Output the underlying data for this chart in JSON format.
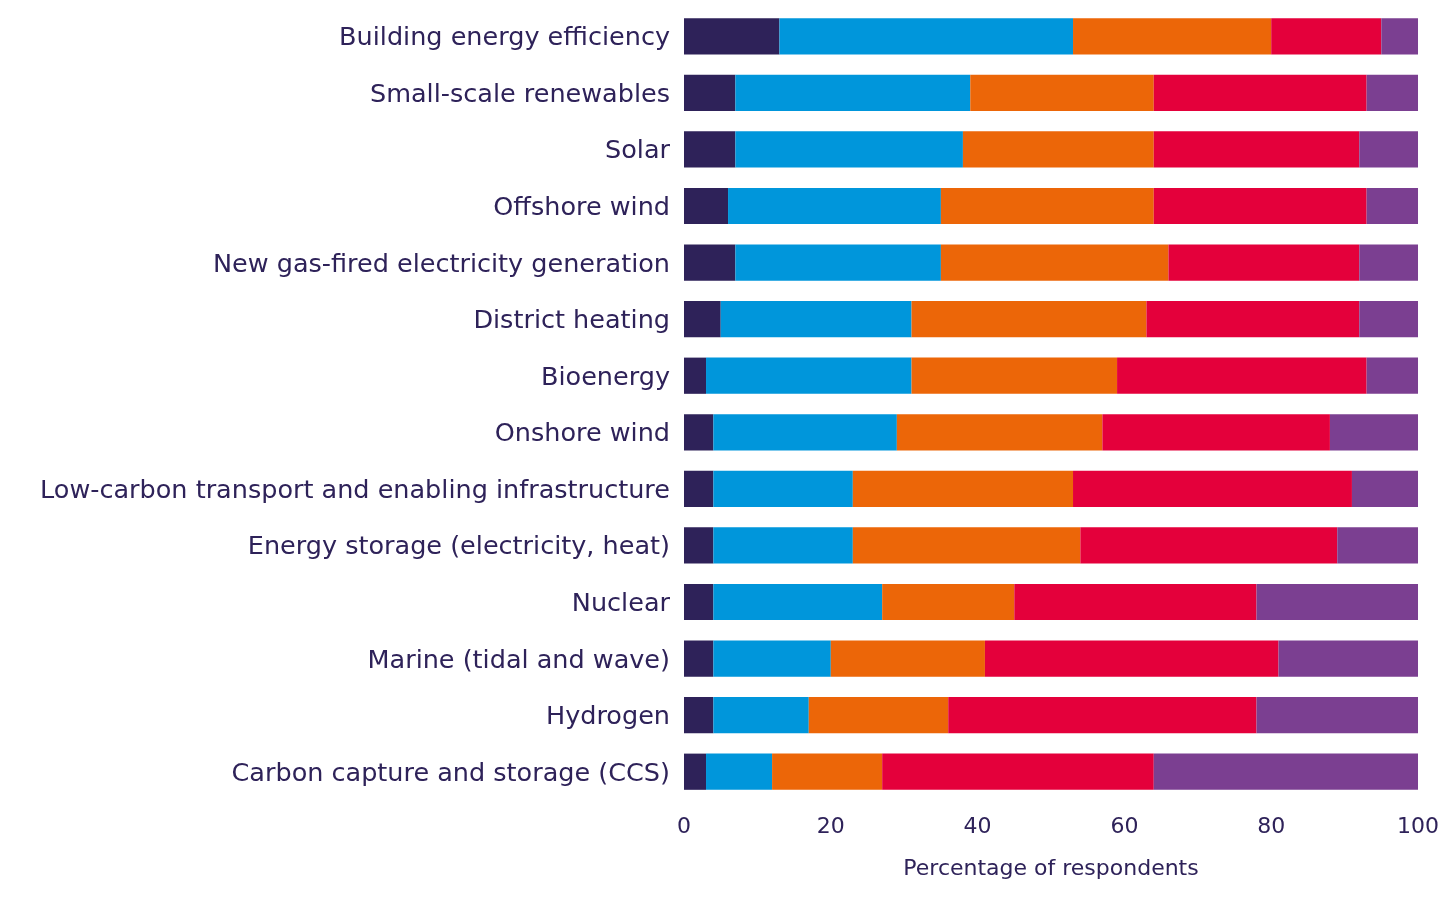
{
  "chart_data": {
    "type": "bar",
    "orientation": "horizontal",
    "stacked": true,
    "xlabel": "Percentage of respondents",
    "categories": [
      "Building energy efficiency",
      "Small-scale renewables",
      "Solar",
      "Offshore wind",
      "New gas-fired electricity generation",
      "District heating",
      "Bioenergy",
      "Onshore wind",
      "Low-carbon transport and enabling infrastructure",
      "Energy storage (electricity, heat)",
      "Nuclear",
      "Marine (tidal and wave)",
      "Hydrogen",
      "Carbon capture and storage (CCS)"
    ],
    "series": [
      {
        "color": "#2e2259",
        "values": [
          13,
          7,
          7,
          6,
          7,
          5,
          3,
          4,
          4,
          4,
          4,
          4,
          4,
          3
        ]
      },
      {
        "color": "#0096db",
        "values": [
          40,
          32,
          31,
          29,
          28,
          26,
          28,
          25,
          19,
          19,
          23,
          16,
          13,
          9
        ]
      },
      {
        "color": "#ec6608",
        "values": [
          27,
          25,
          26,
          29,
          31,
          32,
          28,
          28,
          30,
          31,
          18,
          21,
          19,
          15
        ]
      },
      {
        "color": "#e4003b",
        "values": [
          15,
          29,
          28,
          29,
          26,
          29,
          34,
          31,
          38,
          35,
          33,
          40,
          42,
          37
        ]
      },
      {
        "color": "#7b3f91",
        "values": [
          5,
          7,
          8,
          7,
          8,
          8,
          7,
          12,
          9,
          11,
          22,
          19,
          22,
          36
        ]
      }
    ],
    "xlim": [
      0,
      100
    ],
    "xticks": [
      0,
      20,
      40,
      60,
      80,
      100
    ],
    "grid": false
  }
}
